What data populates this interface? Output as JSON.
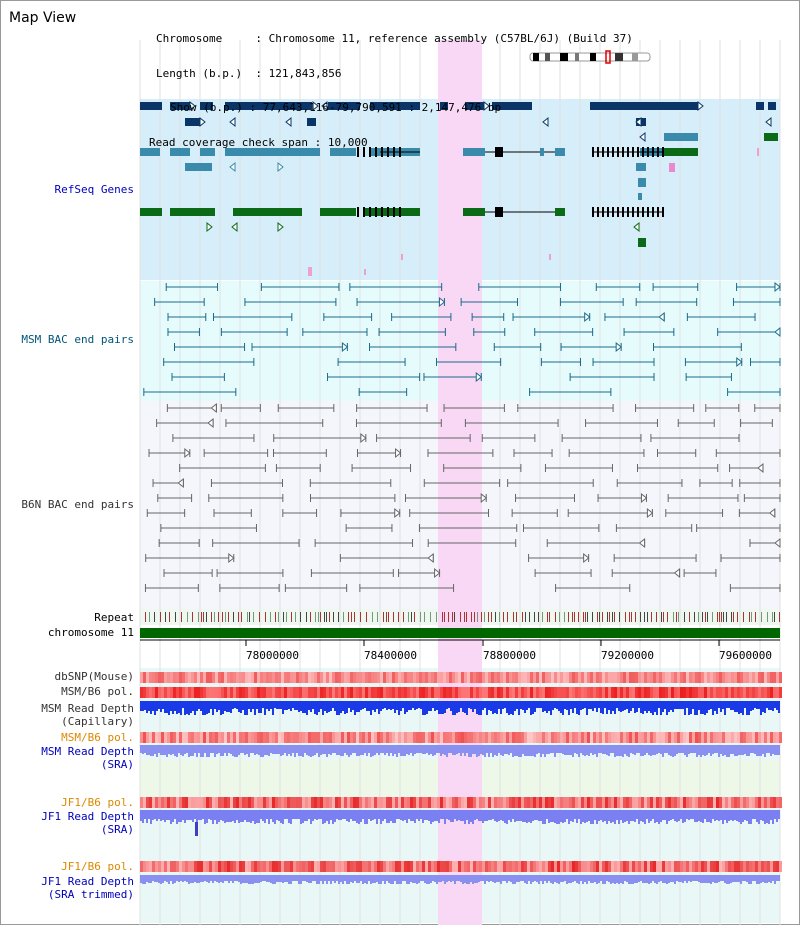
{
  "app": {
    "title": "Map View"
  },
  "info": {
    "chromosome_key": "Chromosome",
    "chromosome_value": "Chromosome 11, reference assembly (C57BL/6J) (Build 37)",
    "length_key": "Length (b.p.)",
    "length_value": "121,843,856",
    "show_key": "Show (b.p.)",
    "show_value": "77,643,116-79,790,591 : 2,147,476 bp",
    "coverage_key": "Read coverage check span",
    "coverage_value": "10,000"
  },
  "tracks": {
    "refseq": "RefSeq Genes",
    "msm_bac": "MSM BAC end pairs",
    "b6n_bac": "B6N BAC end pairs",
    "repeat": "Repeat",
    "chromosome": "chromosome 11",
    "dbsnp": "dbSNP(Mouse)",
    "msm_b6_pol": "MSM/B6 pol.",
    "msm_depth_cap_1": "MSM Read Depth",
    "msm_depth_cap_2": "(Capillary)",
    "msm_b6_pol_2": "MSM/B6 pol.",
    "msm_depth_sra_1": "MSM Read Depth",
    "msm_depth_sra_2": "(SRA)",
    "jf1_pol_1": "JF1/B6 pol.",
    "jf1_depth_sra_1": "JF1 Read Depth",
    "jf1_depth_sra_2": "(SRA)",
    "jf1_pol_2": "JF1/B6 pol.",
    "jf1_depth_trim_1": "JF1 Read Depth",
    "jf1_depth_trim_2": "(SRA trimmed)"
  },
  "axis": {
    "ticks": [
      "78000000",
      "78400000",
      "78800000",
      "79200000",
      "79600000"
    ]
  },
  "colors": {
    "refseq_bg": "#d6eefa",
    "msm_bg": "#e6fcfc",
    "b6n_bg": "#f4f6fc",
    "highlight": "#f8d8f4",
    "chromosome": "#006600",
    "gene_dark": "#0a3566",
    "gene_mid": "#3a8aab",
    "gene_green": "#0a6a16",
    "label_blue": "#0000bb",
    "label_msm": "#005577",
    "label_gray": "#333333",
    "label_orange": "#dd8800"
  }
}
